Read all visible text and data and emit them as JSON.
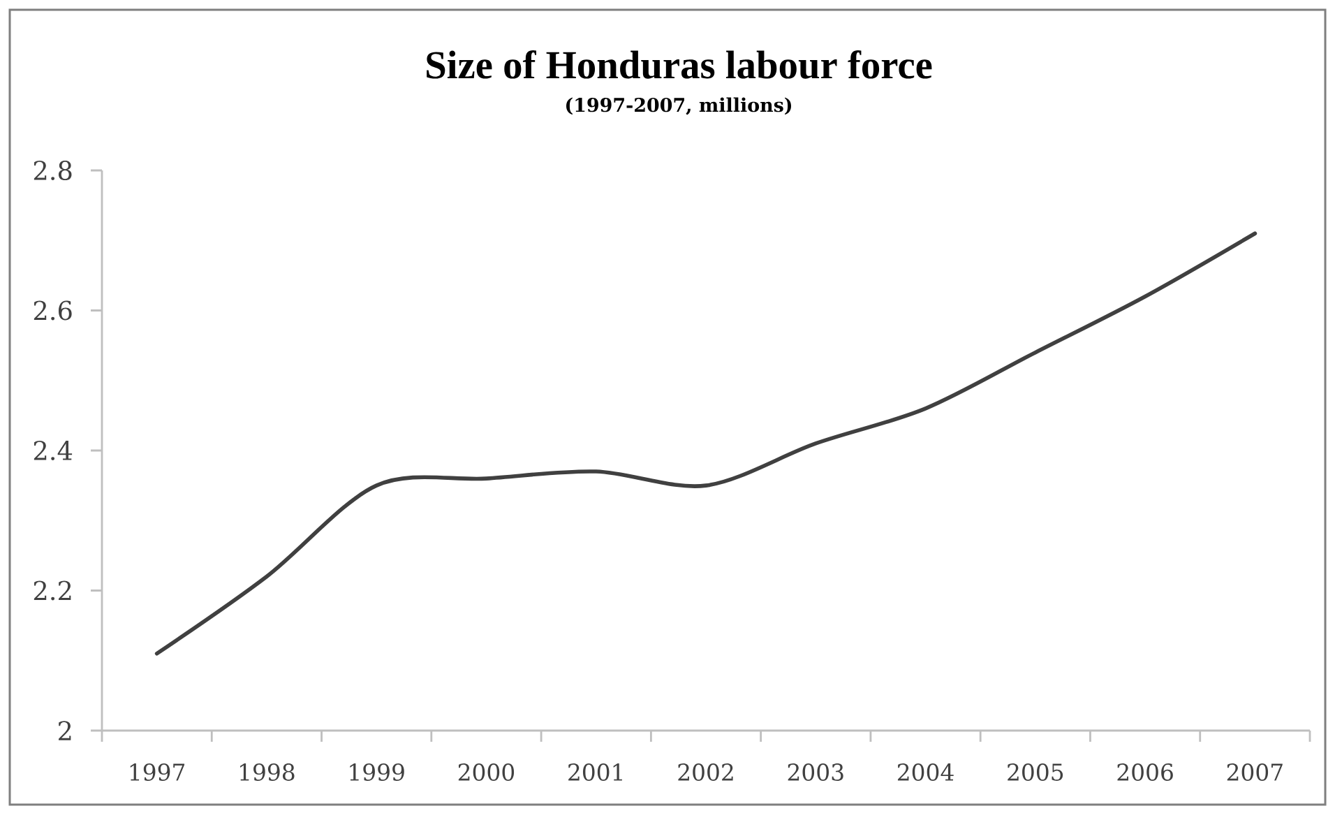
{
  "chart_data": {
    "type": "line",
    "title": "Size of Honduras labour force",
    "subtitle": "(1997-2007, millions)",
    "categories": [
      "1997",
      "1998",
      "1999",
      "2000",
      "2001",
      "2002",
      "2003",
      "2004",
      "2005",
      "2006",
      "2007"
    ],
    "series": [
      {
        "color": "#404040",
        "values": [
          2.11,
          2.22,
          2.35,
          2.36,
          2.37,
          2.35,
          2.41,
          2.46,
          2.54,
          2.62,
          2.71
        ]
      }
    ],
    "ylim": [
      2,
      2.8
    ],
    "yticks": [
      2,
      2.2,
      2.4,
      2.6,
      2.8
    ],
    "marker": "none",
    "line_style": "solid"
  }
}
